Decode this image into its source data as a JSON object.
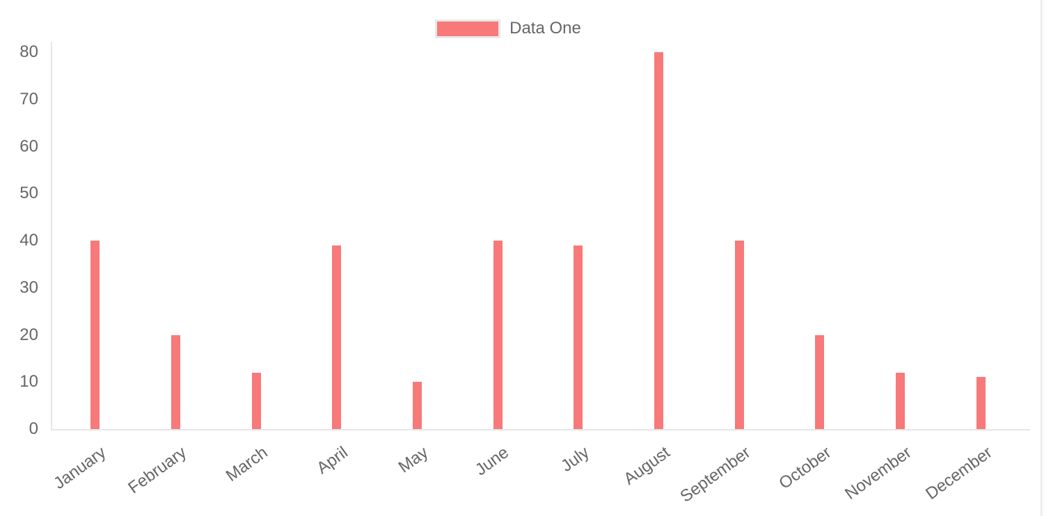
{
  "page": {
    "background": "#ffffff"
  },
  "legend": {
    "position": "top",
    "items": [
      {
        "label": "Data One",
        "swatch_color": "#f87979",
        "swatch_border": "#e8e8e8"
      }
    ]
  },
  "chart_data": {
    "type": "bar",
    "title": "",
    "categories": [
      "January",
      "February",
      "March",
      "April",
      "May",
      "June",
      "July",
      "August",
      "September",
      "October",
      "November",
      "December"
    ],
    "series": [
      {
        "name": "Data One",
        "color": "#f87979",
        "values": [
          40,
          20,
          12,
          39,
          10,
          40,
          39,
          80,
          40,
          20,
          12,
          11
        ]
      }
    ],
    "xlabel": "",
    "ylabel": "",
    "ylim": [
      0,
      80
    ],
    "ytick_step": 10,
    "yticks": [
      "0",
      "10",
      "20",
      "30",
      "40",
      "50",
      "60",
      "70",
      "80"
    ],
    "grid": false,
    "legend_position": "top",
    "x_label_rotation_deg": -36,
    "axis_line_color": "#e6e6e6",
    "tick_text_color": "#666666"
  }
}
